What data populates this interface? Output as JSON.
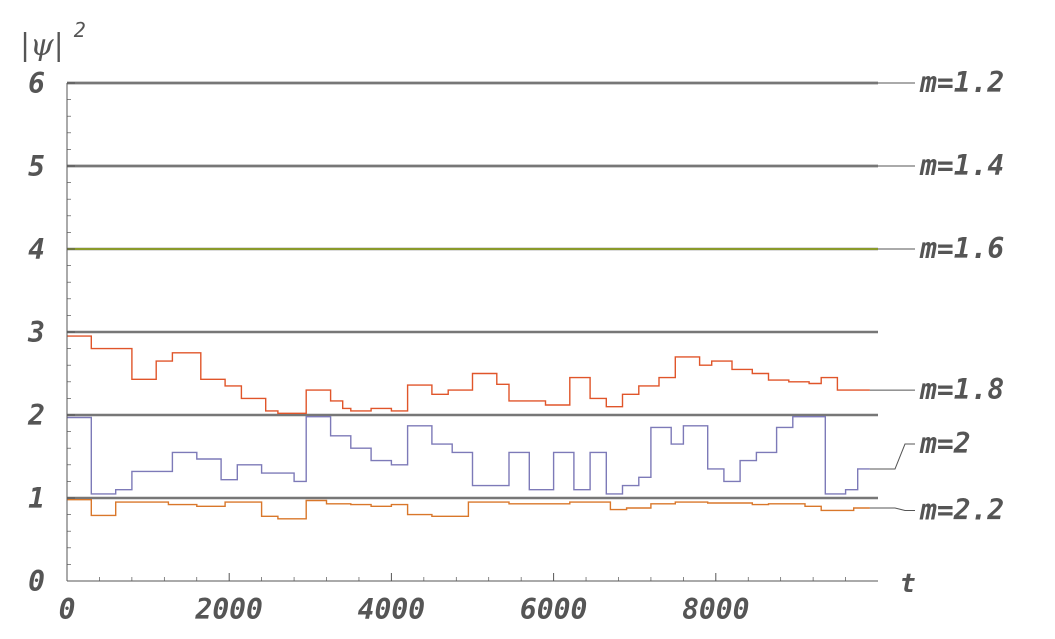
{
  "chart_data": {
    "type": "line",
    "xlabel": "t",
    "ylabel": "|ψ|",
    "ylabel_superscript": "2",
    "xlim": [
      0,
      10000
    ],
    "ylim": [
      0,
      6
    ],
    "x_ticks": [
      "0",
      "2000",
      "4000",
      "6000",
      "8000"
    ],
    "y_ticks": [
      "0",
      "1",
      "2",
      "3",
      "4",
      "5",
      "6"
    ],
    "reference_levels": [
      1,
      2,
      3,
      4,
      5,
      6
    ],
    "colors": {
      "axis": "#555555",
      "reference": "#777777",
      "m_1_6": "#8a9a2a",
      "m_1_8": "#e0552a",
      "m_2": "#7d7ab8",
      "m_2_2": "#d9772a"
    },
    "series": [
      {
        "name": "m=1.2",
        "label_y": 6.0,
        "points": [
          [
            0,
            6
          ],
          [
            10000,
            6
          ]
        ]
      },
      {
        "name": "m=1.4",
        "label_y": 5.0,
        "points": [
          [
            0,
            5
          ],
          [
            10000,
            5
          ]
        ]
      },
      {
        "name": "m=1.6",
        "label_y": 4.0,
        "points": [
          [
            0,
            4
          ],
          [
            10000,
            4
          ]
        ]
      },
      {
        "name": "m=1.8",
        "label_y": 2.3,
        "points": [
          [
            0,
            2.95
          ],
          [
            300,
            2.95
          ],
          [
            300,
            2.8
          ],
          [
            800,
            2.8
          ],
          [
            800,
            2.43
          ],
          [
            1100,
            2.43
          ],
          [
            1100,
            2.65
          ],
          [
            1300,
            2.65
          ],
          [
            1300,
            2.75
          ],
          [
            1650,
            2.75
          ],
          [
            1650,
            2.43
          ],
          [
            1950,
            2.43
          ],
          [
            1950,
            2.35
          ],
          [
            2150,
            2.35
          ],
          [
            2150,
            2.2
          ],
          [
            2450,
            2.2
          ],
          [
            2450,
            2.05
          ],
          [
            2600,
            2.05
          ],
          [
            2600,
            2.02
          ],
          [
            2950,
            2.02
          ],
          [
            2950,
            2.3
          ],
          [
            3250,
            2.3
          ],
          [
            3250,
            2.17
          ],
          [
            3400,
            2.17
          ],
          [
            3400,
            2.08
          ],
          [
            3500,
            2.08
          ],
          [
            3500,
            2.05
          ],
          [
            3750,
            2.05
          ],
          [
            3750,
            2.08
          ],
          [
            4000,
            2.08
          ],
          [
            4000,
            2.05
          ],
          [
            4200,
            2.05
          ],
          [
            4200,
            2.36
          ],
          [
            4500,
            2.36
          ],
          [
            4500,
            2.25
          ],
          [
            4700,
            2.25
          ],
          [
            4700,
            2.3
          ],
          [
            5000,
            2.3
          ],
          [
            5000,
            2.5
          ],
          [
            5300,
            2.5
          ],
          [
            5300,
            2.37
          ],
          [
            5450,
            2.37
          ],
          [
            5450,
            2.17
          ],
          [
            5900,
            2.17
          ],
          [
            5900,
            2.12
          ],
          [
            6200,
            2.12
          ],
          [
            6200,
            2.45
          ],
          [
            6450,
            2.45
          ],
          [
            6450,
            2.2
          ],
          [
            6650,
            2.2
          ],
          [
            6650,
            2.1
          ],
          [
            6850,
            2.1
          ],
          [
            6850,
            2.25
          ],
          [
            7050,
            2.25
          ],
          [
            7050,
            2.35
          ],
          [
            7300,
            2.35
          ],
          [
            7300,
            2.45
          ],
          [
            7500,
            2.45
          ],
          [
            7500,
            2.7
          ],
          [
            7800,
            2.7
          ],
          [
            7800,
            2.6
          ],
          [
            7950,
            2.6
          ],
          [
            7950,
            2.65
          ],
          [
            8200,
            2.65
          ],
          [
            8200,
            2.55
          ],
          [
            8450,
            2.55
          ],
          [
            8450,
            2.5
          ],
          [
            8650,
            2.5
          ],
          [
            8650,
            2.42
          ],
          [
            8900,
            2.42
          ],
          [
            8900,
            2.4
          ],
          [
            9150,
            2.4
          ],
          [
            9150,
            2.38
          ],
          [
            9300,
            2.38
          ],
          [
            9300,
            2.45
          ],
          [
            9500,
            2.45
          ],
          [
            9500,
            2.3
          ],
          [
            9900,
            2.3
          ]
        ]
      },
      {
        "name": "m=2",
        "label_y": 1.65,
        "points": [
          [
            0,
            1.97
          ],
          [
            300,
            1.97
          ],
          [
            300,
            1.05
          ],
          [
            600,
            1.05
          ],
          [
            600,
            1.1
          ],
          [
            800,
            1.1
          ],
          [
            800,
            1.32
          ],
          [
            1300,
            1.32
          ],
          [
            1300,
            1.55
          ],
          [
            1600,
            1.55
          ],
          [
            1600,
            1.47
          ],
          [
            1900,
            1.47
          ],
          [
            1900,
            1.22
          ],
          [
            2100,
            1.22
          ],
          [
            2100,
            1.4
          ],
          [
            2400,
            1.4
          ],
          [
            2400,
            1.3
          ],
          [
            2800,
            1.3
          ],
          [
            2800,
            1.2
          ],
          [
            2950,
            1.2
          ],
          [
            2950,
            1.98
          ],
          [
            3250,
            1.98
          ],
          [
            3250,
            1.75
          ],
          [
            3500,
            1.75
          ],
          [
            3500,
            1.6
          ],
          [
            3750,
            1.6
          ],
          [
            3750,
            1.45
          ],
          [
            4000,
            1.45
          ],
          [
            4000,
            1.4
          ],
          [
            4200,
            1.4
          ],
          [
            4200,
            1.87
          ],
          [
            4500,
            1.87
          ],
          [
            4500,
            1.65
          ],
          [
            4750,
            1.65
          ],
          [
            4750,
            1.55
          ],
          [
            5000,
            1.55
          ],
          [
            5000,
            1.15
          ],
          [
            5450,
            1.15
          ],
          [
            5450,
            1.55
          ],
          [
            5700,
            1.55
          ],
          [
            5700,
            1.1
          ],
          [
            6000,
            1.1
          ],
          [
            6000,
            1.55
          ],
          [
            6250,
            1.55
          ],
          [
            6250,
            1.1
          ],
          [
            6450,
            1.1
          ],
          [
            6450,
            1.55
          ],
          [
            6650,
            1.55
          ],
          [
            6650,
            1.05
          ],
          [
            6850,
            1.05
          ],
          [
            6850,
            1.15
          ],
          [
            7050,
            1.15
          ],
          [
            7050,
            1.25
          ],
          [
            7200,
            1.25
          ],
          [
            7200,
            1.85
          ],
          [
            7450,
            1.85
          ],
          [
            7450,
            1.65
          ],
          [
            7600,
            1.65
          ],
          [
            7600,
            1.87
          ],
          [
            7900,
            1.87
          ],
          [
            7900,
            1.35
          ],
          [
            8100,
            1.35
          ],
          [
            8100,
            1.2
          ],
          [
            8300,
            1.2
          ],
          [
            8300,
            1.45
          ],
          [
            8500,
            1.45
          ],
          [
            8500,
            1.55
          ],
          [
            8750,
            1.55
          ],
          [
            8750,
            1.85
          ],
          [
            8950,
            1.85
          ],
          [
            8950,
            1.98
          ],
          [
            9350,
            1.98
          ],
          [
            9350,
            1.05
          ],
          [
            9600,
            1.05
          ],
          [
            9600,
            1.1
          ],
          [
            9750,
            1.1
          ],
          [
            9750,
            1.35
          ],
          [
            9900,
            1.35
          ]
        ]
      },
      {
        "name": "m=2.2",
        "label_y": 0.85,
        "points": [
          [
            0,
            0.98
          ],
          [
            300,
            0.98
          ],
          [
            300,
            0.79
          ],
          [
            600,
            0.79
          ],
          [
            600,
            0.95
          ],
          [
            1250,
            0.95
          ],
          [
            1250,
            0.92
          ],
          [
            1600,
            0.92
          ],
          [
            1600,
            0.9
          ],
          [
            1950,
            0.9
          ],
          [
            1950,
            0.95
          ],
          [
            2400,
            0.95
          ],
          [
            2400,
            0.78
          ],
          [
            2600,
            0.78
          ],
          [
            2600,
            0.75
          ],
          [
            2950,
            0.75
          ],
          [
            2950,
            0.97
          ],
          [
            3200,
            0.97
          ],
          [
            3200,
            0.93
          ],
          [
            3500,
            0.93
          ],
          [
            3500,
            0.92
          ],
          [
            3750,
            0.92
          ],
          [
            3750,
            0.9
          ],
          [
            4000,
            0.9
          ],
          [
            4000,
            0.92
          ],
          [
            4200,
            0.92
          ],
          [
            4200,
            0.8
          ],
          [
            4500,
            0.8
          ],
          [
            4500,
            0.78
          ],
          [
            4950,
            0.78
          ],
          [
            4950,
            0.95
          ],
          [
            5450,
            0.95
          ],
          [
            5450,
            0.93
          ],
          [
            6200,
            0.93
          ],
          [
            6200,
            0.95
          ],
          [
            6700,
            0.95
          ],
          [
            6700,
            0.86
          ],
          [
            6900,
            0.86
          ],
          [
            6900,
            0.88
          ],
          [
            7200,
            0.88
          ],
          [
            7200,
            0.93
          ],
          [
            7500,
            0.93
          ],
          [
            7500,
            0.95
          ],
          [
            7900,
            0.95
          ],
          [
            7900,
            0.94
          ],
          [
            8450,
            0.94
          ],
          [
            8450,
            0.92
          ],
          [
            8650,
            0.92
          ],
          [
            8650,
            0.93
          ],
          [
            9100,
            0.93
          ],
          [
            9100,
            0.9
          ],
          [
            9300,
            0.9
          ],
          [
            9300,
            0.85
          ],
          [
            9700,
            0.85
          ],
          [
            9700,
            0.88
          ],
          [
            9900,
            0.88
          ]
        ]
      }
    ]
  }
}
